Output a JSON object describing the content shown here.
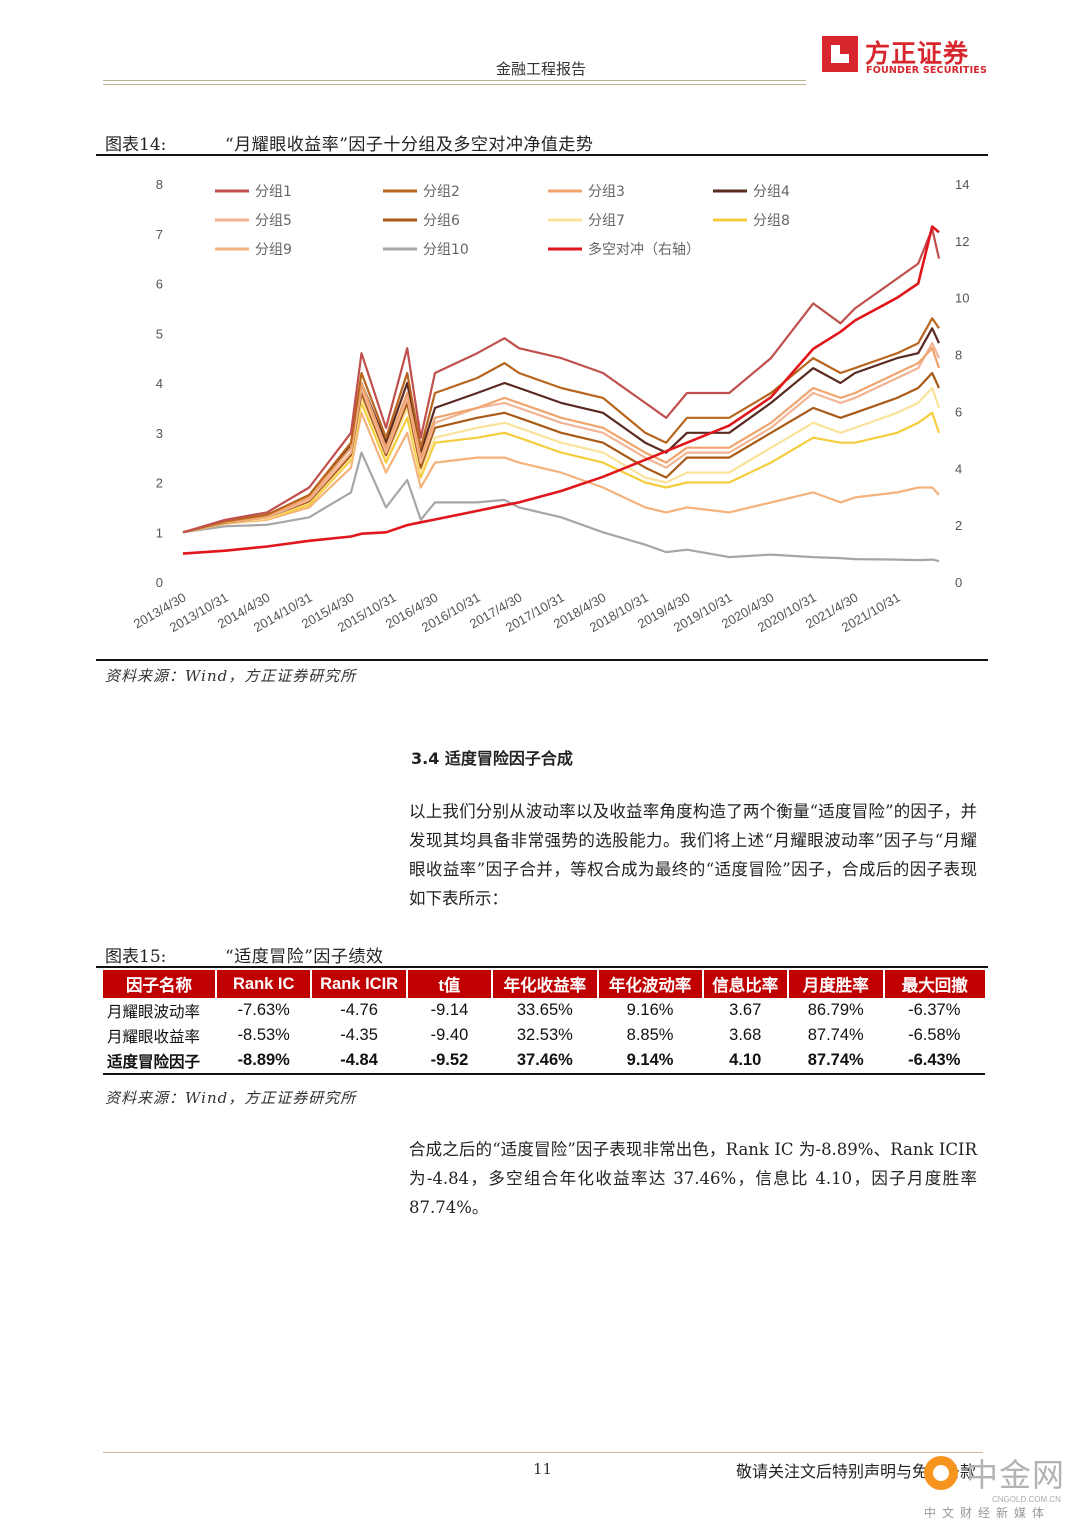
{
  "header": {
    "report_type": "金融工程报告",
    "logo_cn": "方正证券",
    "logo_en": "FOUNDER SECURITIES"
  },
  "figure14": {
    "label": "图表14:",
    "title": "“月耀眼收益率”因子十分组及多空对冲净值走势",
    "source": "资料来源：Wind，方正证券研究所"
  },
  "colors": {
    "g1": "#c0504d",
    "g2": "#b8651e",
    "g3": "#f0a46e",
    "g4": "#5a2a22",
    "g5": "#f2b493",
    "g6": "#a85a16",
    "g7": "#fbe29a",
    "g8": "#f5cd3c",
    "g9": "#f4b27c",
    "g10": "#a6a6a6",
    "ls": "#e0161c"
  },
  "chart_data": {
    "type": "line",
    "title": "",
    "x_ticks": [
      "2013/4/30",
      "2013/10/31",
      "2014/4/30",
      "2014/10/31",
      "2015/4/30",
      "2015/10/31",
      "2016/4/30",
      "2016/10/31",
      "2017/4/30",
      "2017/10/31",
      "2018/4/30",
      "2018/10/31",
      "2019/4/30",
      "2019/10/31",
      "2020/4/30",
      "2020/10/31",
      "2021/4/30",
      "2021/10/31"
    ],
    "y_left": [
      0,
      8
    ],
    "y_left_ticks": [
      "0",
      "1",
      "2",
      "3",
      "4",
      "5",
      "6",
      "7",
      "8"
    ],
    "y_right": [
      0,
      14
    ],
    "y_right_ticks": [
      "0",
      "2",
      "4",
      "6",
      "8",
      "10",
      "12",
      "14"
    ],
    "legend_position": "top",
    "grid": false,
    "x": [
      "2013/4/30",
      "2013/10/31",
      "2014/4/30",
      "2014/10/31",
      "2015/4/30",
      "2015/6/15",
      "2015/9/30",
      "2015/12/31",
      "2016/2/29",
      "2016/4/30",
      "2016/10/31",
      "2017/2/28",
      "2017/4/30",
      "2017/10/31",
      "2018/4/30",
      "2018/10/31",
      "2019/1/31",
      "2019/4/30",
      "2019/10/31",
      "2020/4/30",
      "2020/10/31",
      "2021/2/28",
      "2021/4/30",
      "2021/10/31",
      "2022/1/31",
      "2022/3/31",
      "2022/4/30"
    ],
    "series": [
      {
        "name": "分组1",
        "color_key": "g1",
        "axis": "left",
        "values": [
          1.0,
          1.25,
          1.4,
          1.9,
          3.0,
          4.6,
          3.1,
          4.7,
          2.9,
          4.2,
          4.6,
          4.9,
          4.7,
          4.5,
          4.2,
          3.6,
          3.3,
          3.8,
          3.8,
          4.5,
          5.6,
          5.2,
          5.5,
          6.1,
          6.4,
          7.1,
          6.5
        ]
      },
      {
        "name": "分组2",
        "color_key": "g2",
        "axis": "left",
        "values": [
          1.0,
          1.22,
          1.35,
          1.75,
          2.8,
          4.2,
          2.9,
          4.2,
          2.7,
          3.8,
          4.1,
          4.4,
          4.2,
          3.9,
          3.7,
          3.0,
          2.8,
          3.3,
          3.3,
          3.8,
          4.5,
          4.2,
          4.3,
          4.6,
          4.8,
          5.3,
          5.1
        ]
      },
      {
        "name": "分组3",
        "color_key": "g3",
        "axis": "left",
        "values": [
          1.0,
          1.2,
          1.32,
          1.7,
          2.7,
          4.0,
          2.7,
          3.8,
          2.5,
          3.3,
          3.5,
          3.7,
          3.6,
          3.3,
          3.1,
          2.6,
          2.4,
          2.7,
          2.7,
          3.2,
          3.9,
          3.7,
          3.8,
          4.2,
          4.4,
          4.7,
          4.3
        ]
      },
      {
        "name": "分组4",
        "color_key": "g4",
        "axis": "left",
        "values": [
          1.0,
          1.21,
          1.34,
          1.72,
          2.75,
          4.0,
          2.8,
          4.0,
          2.6,
          3.5,
          3.8,
          4.0,
          3.9,
          3.6,
          3.4,
          2.8,
          2.6,
          3.0,
          3.0,
          3.6,
          4.3,
          4.0,
          4.2,
          4.5,
          4.6,
          5.1,
          4.8
        ]
      },
      {
        "name": "分组5",
        "color_key": "g5",
        "axis": "left",
        "values": [
          1.0,
          1.2,
          1.3,
          1.65,
          2.6,
          3.9,
          2.6,
          3.7,
          2.4,
          3.2,
          3.5,
          3.6,
          3.5,
          3.2,
          3.0,
          2.5,
          2.3,
          2.6,
          2.6,
          3.1,
          3.8,
          3.6,
          3.7,
          4.1,
          4.3,
          4.8,
          4.5
        ]
      },
      {
        "name": "分组6",
        "color_key": "g6",
        "axis": "left",
        "values": [
          1.0,
          1.19,
          1.3,
          1.62,
          2.55,
          3.8,
          2.55,
          3.6,
          2.3,
          3.1,
          3.3,
          3.4,
          3.3,
          3.0,
          2.8,
          2.3,
          2.1,
          2.5,
          2.5,
          3.0,
          3.5,
          3.3,
          3.4,
          3.7,
          3.9,
          4.2,
          3.9
        ]
      },
      {
        "name": "分组7",
        "color_key": "g7",
        "axis": "left",
        "values": [
          1.0,
          1.18,
          1.28,
          1.6,
          2.5,
          3.7,
          2.5,
          3.5,
          2.2,
          2.9,
          3.1,
          3.2,
          3.1,
          2.8,
          2.6,
          2.1,
          2.0,
          2.2,
          2.2,
          2.7,
          3.2,
          3.0,
          3.1,
          3.4,
          3.6,
          3.9,
          3.5
        ]
      },
      {
        "name": "分组8",
        "color_key": "g8",
        "axis": "left",
        "values": [
          1.0,
          1.18,
          1.27,
          1.55,
          2.45,
          3.6,
          2.4,
          3.3,
          2.1,
          2.8,
          2.9,
          3.0,
          2.9,
          2.6,
          2.4,
          2.0,
          1.9,
          2.0,
          2.0,
          2.4,
          2.9,
          2.8,
          2.8,
          3.0,
          3.2,
          3.4,
          3.0
        ]
      },
      {
        "name": "分组9",
        "color_key": "g9",
        "axis": "left",
        "values": [
          1.0,
          1.17,
          1.25,
          1.5,
          2.3,
          3.4,
          2.2,
          3.0,
          1.9,
          2.4,
          2.5,
          2.5,
          2.4,
          2.2,
          1.9,
          1.5,
          1.4,
          1.5,
          1.4,
          1.6,
          1.8,
          1.6,
          1.7,
          1.8,
          1.9,
          1.9,
          1.75
        ]
      },
      {
        "name": "分组10",
        "color_key": "g10",
        "axis": "left",
        "values": [
          1.0,
          1.12,
          1.15,
          1.3,
          1.8,
          2.6,
          1.5,
          2.05,
          1.25,
          1.6,
          1.6,
          1.65,
          1.5,
          1.3,
          1.0,
          0.75,
          0.6,
          0.65,
          0.5,
          0.55,
          0.5,
          0.48,
          0.46,
          0.45,
          0.44,
          0.45,
          0.42
        ]
      },
      {
        "name": "多空对冲（右轴）",
        "color_key": "ls",
        "axis": "right",
        "values": [
          1.0,
          1.1,
          1.25,
          1.45,
          1.6,
          1.7,
          1.75,
          2.0,
          2.1,
          2.2,
          2.5,
          2.7,
          2.8,
          3.2,
          3.7,
          4.3,
          4.6,
          4.9,
          5.5,
          6.5,
          8.2,
          8.8,
          9.2,
          10.0,
          10.5,
          12.5,
          12.3
        ]
      }
    ]
  },
  "section": {
    "heading": "3.4   适度冒险因子合成",
    "para1": "以上我们分别从波动率以及收益率角度构造了两个衡量“适度冒险”的因子，并发现其均具备非常强势的选股能力。我们将上述“月耀眼波动率”因子与“月耀眼收益率”因子合并，等权合成为最终的“适度冒险”因子，合成后的因子表现如下表所示：",
    "para2": "合成之后的“适度冒险”因子表现非常出色，Rank IC 为-8.89%、Rank ICIR 为-4.84，多空组合年化收益率达 37.46%，信息比 4.10，因子月度胜率 87.74%。"
  },
  "figure15": {
    "label": "图表15:",
    "title": "“适度冒险”因子绩效",
    "source": "资料来源：Wind，方正证券研究所",
    "headers": [
      "因子名称",
      "Rank IC",
      "Rank ICIR",
      "t值",
      "年化收益率",
      "年化波动率",
      "信息比率",
      "月度胜率",
      "最大回撤"
    ],
    "rows": [
      [
        "月耀眼波动率",
        "-7.63%",
        "-4.76",
        "-9.14",
        "33.65%",
        "9.16%",
        "3.67",
        "86.79%",
        "-6.37%"
      ],
      [
        "月耀眼收益率",
        "-8.53%",
        "-4.35",
        "-9.40",
        "32.53%",
        "8.85%",
        "3.68",
        "87.74%",
        "-6.58%"
      ],
      [
        "适度冒险因子",
        "-8.89%",
        "-4.84",
        "-9.52",
        "37.46%",
        "9.14%",
        "4.10",
        "87.74%",
        "-6.43%"
      ]
    ]
  },
  "footer": {
    "page": "11",
    "note": "敬请关注文后特别声明与免责条款",
    "watermark_cn": "中金网",
    "watermark_url": "CNGOLD.COM.CN",
    "watermark_sub": "中文财经新媒体"
  }
}
